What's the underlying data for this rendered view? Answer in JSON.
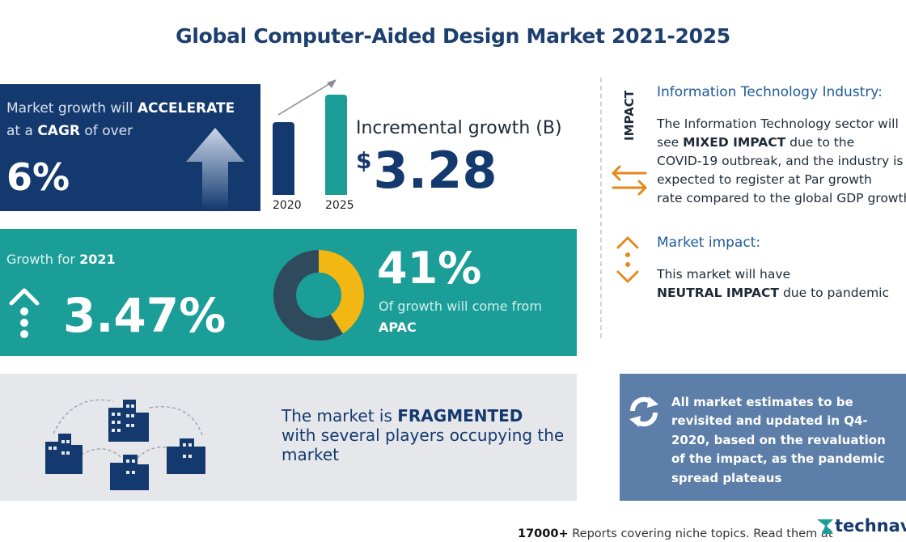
{
  "title": "Global Computer-Aided Design Market 2021-2025",
  "cagr_panel": {
    "line1_prefix": "Market growth will",
    "line1_emphasis": "ACCELERATE",
    "line2_prefix": "at a",
    "line2_emphasis": "CAGR",
    "line2_suffix": "of over",
    "value": "6%",
    "icon": "up-arrow-icon"
  },
  "incremental_panel": {
    "label": "Incremental growth (B)",
    "currency": "$",
    "value": "3.28",
    "years": [
      "2020",
      "2025"
    ]
  },
  "growth_panel": {
    "label_prefix": "Growth for",
    "label_year": "2021",
    "value": "3.47%",
    "region_share": "41%",
    "region_text": "Of growth will come from",
    "region": "APAC",
    "region_share_fraction": 0.41
  },
  "fragmented_panel": {
    "line1_prefix": "The market is",
    "line1_emphasis": "FRAGMENTED",
    "line2": "with several players occupying the",
    "line3": "market"
  },
  "impact": {
    "tag": "IMPACT",
    "it_title": "Information Technology Industry:",
    "it_body": [
      "The Information Technology sector will",
      "see",
      "MIXED IMPACT",
      "due to the",
      "COVID-19 outbreak, and the industry is",
      "expected to register at Par growth",
      "rate compared to the global GDP growth."
    ],
    "mi_title": "Market impact:",
    "mi_body_line1": "This market will have",
    "mi_body_emphasis": "NEUTRAL IMPACT",
    "mi_body_line2_suffix": "due to pandemic"
  },
  "note": {
    "text": "All market estimates to be revisited and updated in Q4-2020, based on the revaluation of the impact, as the pandemic spread plateaus",
    "icon": "refresh-icon"
  },
  "footer": {
    "count": "17000+",
    "text": "Reports covering niche topics. Read them at",
    "brand": "technavio"
  },
  "colors": {
    "navy": "#13396e",
    "teal": "#1a9e97",
    "gold": "#f2b712",
    "orange": "#e38a1d",
    "note_blue": "#5c7ea8"
  }
}
